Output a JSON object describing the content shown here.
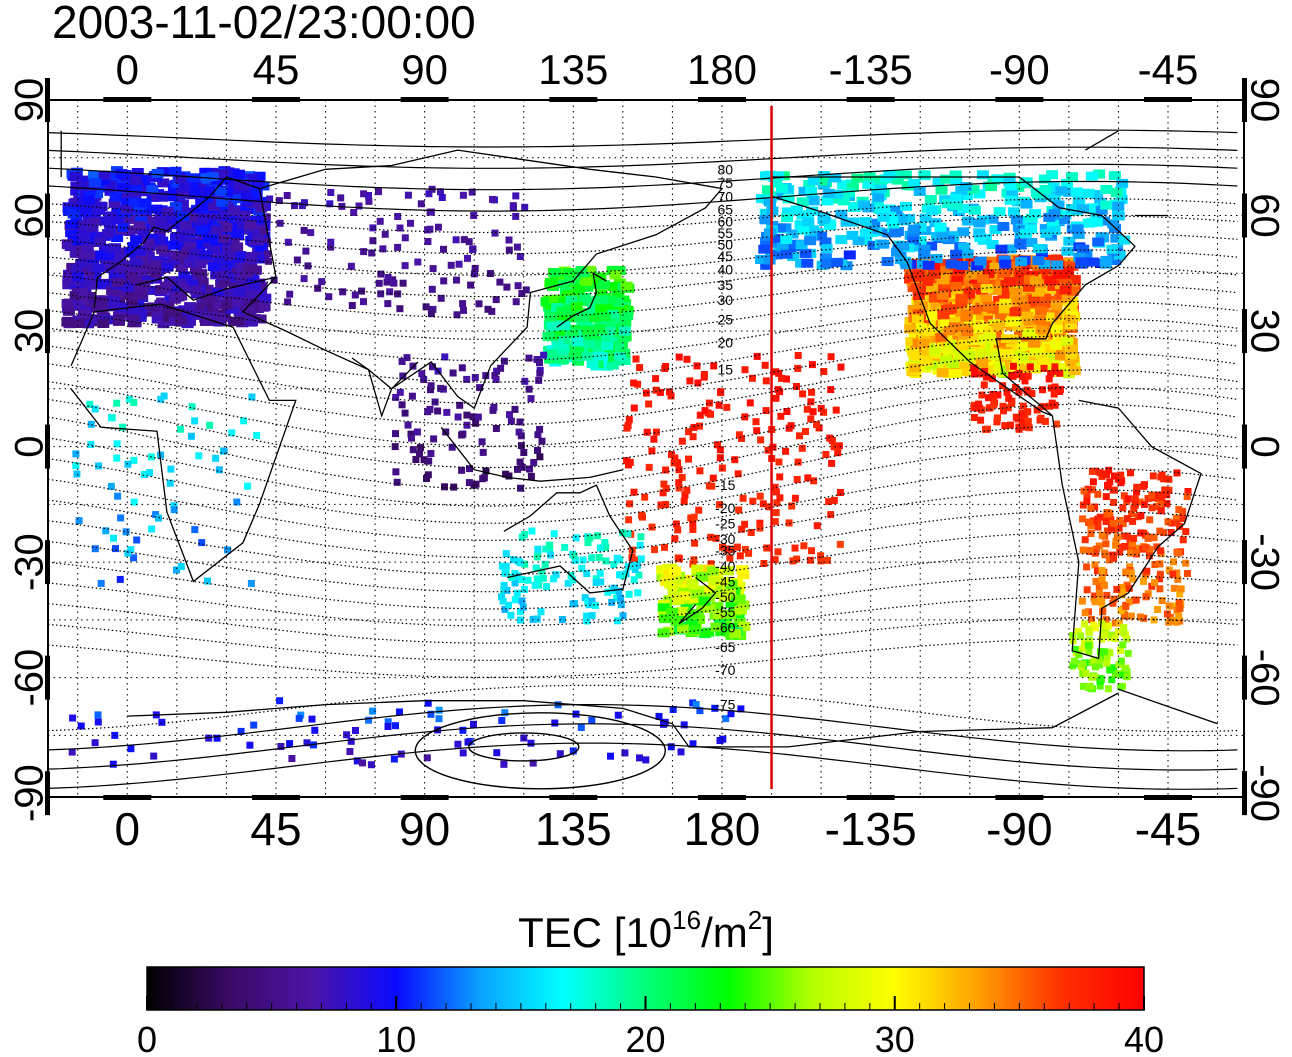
{
  "title": "2003-11-02/23:00:00",
  "map": {
    "lon_ticks": [
      0,
      45,
      90,
      135,
      180,
      -135,
      -90,
      -45
    ],
    "lon_tick_labels": [
      "0",
      "45",
      "90",
      "135",
      "180",
      "-135",
      "-90",
      "-45"
    ],
    "lat_ticks": [
      90,
      60,
      30,
      0,
      -30,
      -60,
      -90
    ],
    "lat_tick_labels": [
      "90",
      "60",
      "30",
      "0",
      "-30",
      "-60",
      "-90"
    ],
    "lon_range": [
      -24,
      338
    ],
    "lat_range": [
      -91,
      90
    ],
    "grid": true,
    "terminator_lon": 195,
    "magnetic_latitude_labels": [
      "80",
      "75",
      "70",
      "65",
      "60",
      "55",
      "50",
      "45",
      "40",
      "35",
      "30",
      "25",
      "20",
      "15",
      "-15",
      "-20",
      "-25",
      "-30",
      "-35",
      "-40",
      "-45",
      "-50",
      "-55",
      "-60",
      "-65",
      "-70",
      "-75"
    ]
  },
  "colorbar": {
    "title": "TEC  [10",
    "title_sup1": "16",
    "title_mid": "/m",
    "title_sup2": "2",
    "title_end": "]",
    "min": 0,
    "max": 40,
    "tick_values": [
      0,
      10,
      20,
      30,
      40
    ],
    "tick_labels": [
      "0",
      "10",
      "20",
      "30",
      "40"
    ],
    "stops": [
      "#000000",
      "#3a0a66",
      "#4a14a6",
      "#0a0aff",
      "#0aa0ff",
      "#00ffff",
      "#00ff7a",
      "#00ff00",
      "#b4ff00",
      "#ffff00",
      "#ffa000",
      "#ff3000",
      "#ff0000"
    ]
  },
  "colors": {
    "terminator": "#e00000",
    "coast": "#000000",
    "grid": "#000000"
  },
  "tec_patches": [
    {
      "region": "Europe",
      "tec_range": [
        4,
        12
      ]
    },
    {
      "region": "Siberia",
      "tec_range": [
        4,
        8
      ]
    },
    {
      "region": "East Asia / Japan",
      "tec_range": [
        16,
        26
      ]
    },
    {
      "region": "Western Pacific",
      "tec_range": [
        36,
        40
      ]
    },
    {
      "region": "New Zealand",
      "tec_range": [
        20,
        32
      ]
    },
    {
      "region": "Australia",
      "tec_range": [
        13,
        20
      ]
    },
    {
      "region": "North America",
      "tec_range": [
        26,
        40
      ]
    },
    {
      "region": "Canada / Alaska",
      "tec_range": [
        10,
        20
      ]
    },
    {
      "region": "Central America",
      "tec_range": [
        36,
        40
      ]
    },
    {
      "region": "South America",
      "tec_range": [
        32,
        40
      ]
    },
    {
      "region": "Patagonia",
      "tec_range": [
        22,
        30
      ]
    },
    {
      "region": "Africa",
      "tec_range": [
        10,
        20
      ]
    },
    {
      "region": "Southeast Asia",
      "tec_range": [
        2,
        8
      ]
    },
    {
      "region": "Antarctica",
      "tec_range": [
        6,
        14
      ]
    }
  ]
}
